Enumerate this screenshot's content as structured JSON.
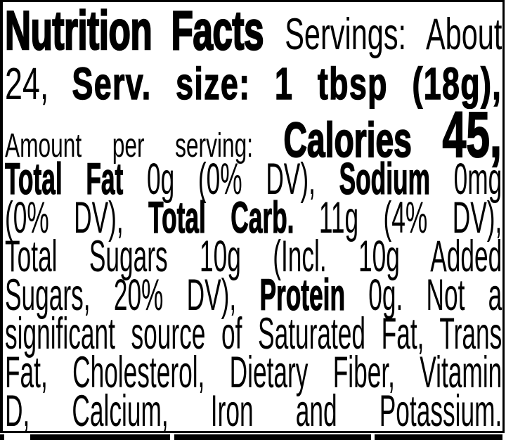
{
  "colors": {
    "ink": "#000000",
    "paper": "#ffffff"
  },
  "label": {
    "lines": [
      {
        "segments": [
          {
            "t": "Nutrition Facts"
          },
          {
            "t": "Servings: About"
          }
        ]
      },
      {
        "segments": [
          {
            "t": "24,"
          },
          {
            "t": "Serv. size: 1 tbsp (18g),"
          }
        ]
      },
      {
        "segments": [
          {
            "t": "Amount per serving:"
          },
          {
            "t": "Calories"
          },
          {
            "t": "45,"
          }
        ]
      },
      {
        "segments": [
          {
            "t": "Total Fat"
          },
          {
            "t": "0g (0% DV),"
          },
          {
            "t": "Sodium"
          },
          {
            "t": "0mg"
          }
        ]
      },
      {
        "segments": [
          {
            "t": "(0% DV),"
          },
          {
            "t": "Total Carb."
          },
          {
            "t": "11g (4% DV),"
          }
        ]
      },
      {
        "segments": [
          {
            "t": "Total Sugars 10g (Incl. 10g Added"
          }
        ]
      },
      {
        "segments": [
          {
            "t": "Sugars, 20% DV),"
          },
          {
            "t": "Protein"
          },
          {
            "t": "0g. Not a"
          }
        ]
      },
      {
        "segments": [
          {
            "t": "significant source of Saturated Fat, Trans"
          }
        ]
      },
      {
        "segments": [
          {
            "t": "Fat, Cholesterol, Dietary Fiber, Vitamin"
          }
        ]
      },
      {
        "segments": [
          {
            "t": "D, Calcium, Iron and Potassium."
          }
        ]
      }
    ],
    "nutrition": {
      "title": "Nutrition Facts",
      "servings_per_container": "About 24",
      "serving_size": "1 tbsp (18g)",
      "calories": "45",
      "total_fat": "0g (0% DV)",
      "sodium": "0mg (0% DV)",
      "total_carb": "11g (4% DV)",
      "total_sugars": "10g",
      "added_sugars": "Incl. 10g Added Sugars, 20% DV",
      "protein": "0g",
      "not_significant_source_of": [
        "Saturated Fat",
        "Trans Fat",
        "Cholesterol",
        "Dietary Fiber",
        "Vitamin D",
        "Calcium",
        "Iron",
        "Potassium"
      ]
    }
  }
}
